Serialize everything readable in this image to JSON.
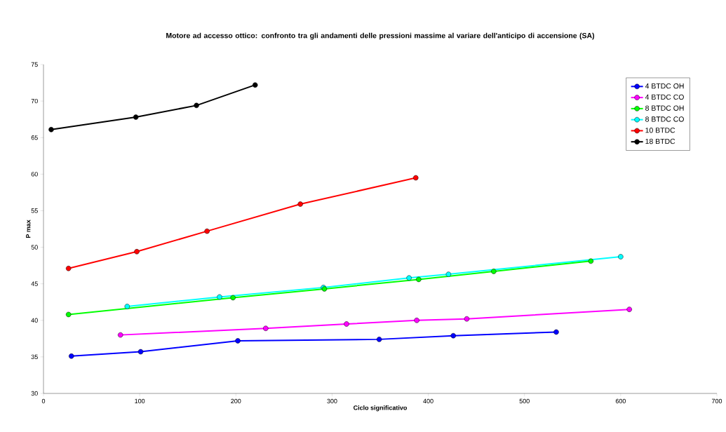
{
  "chart_data": {
    "type": "line",
    "title": "Motore ad accesso ottico: confronto tra gli andamenti delle pressioni massime al variare dell'anticipo di accensione (SA)",
    "xlabel": "Ciclo significativo",
    "ylabel": "P max",
    "xlim": [
      0,
      700
    ],
    "xticks": [
      0,
      100,
      200,
      300,
      400,
      500,
      600,
      700
    ],
    "ylim": [
      30,
      75
    ],
    "yticks": [
      30,
      35,
      40,
      45,
      50,
      55,
      60,
      65,
      70,
      75
    ],
    "legend": "top right",
    "marker": "circle",
    "line_style": "solid",
    "grid": false,
    "series": [
      {
        "name": "4 BTDC OH",
        "color": "#0000ff",
        "x": [
          29,
          101,
          202,
          349,
          426,
          533
        ],
        "values": [
          35.1,
          35.7,
          37.2,
          37.4,
          37.9,
          38.4
        ]
      },
      {
        "name": "4 BTDC CO",
        "color": "#ff00ff",
        "x": [
          80,
          231,
          315,
          388,
          440,
          609
        ],
        "values": [
          38.0,
          38.9,
          39.5,
          40.0,
          40.2,
          41.5
        ]
      },
      {
        "name": "8 BTDC OH",
        "color": "#00ff00",
        "x": [
          26,
          197,
          292,
          390,
          468,
          569
        ],
        "values": [
          40.8,
          43.1,
          44.3,
          45.6,
          46.7,
          48.1
        ]
      },
      {
        "name": "8 BTDC CO",
        "color": "#00ffff",
        "x": [
          87,
          183,
          291,
          380,
          421,
          600
        ],
        "values": [
          41.9,
          43.2,
          44.5,
          45.8,
          46.3,
          48.7
        ]
      },
      {
        "name": "10 BTDC",
        "color": "#ff0000",
        "x": [
          26,
          97,
          170,
          267,
          387
        ],
        "values": [
          47.1,
          49.4,
          52.2,
          55.9,
          59.5
        ]
      },
      {
        "name": "18 BTDC",
        "color": "#000000",
        "x": [
          8,
          96,
          159,
          220
        ],
        "values": [
          66.1,
          67.8,
          69.4,
          72.2
        ]
      }
    ]
  }
}
